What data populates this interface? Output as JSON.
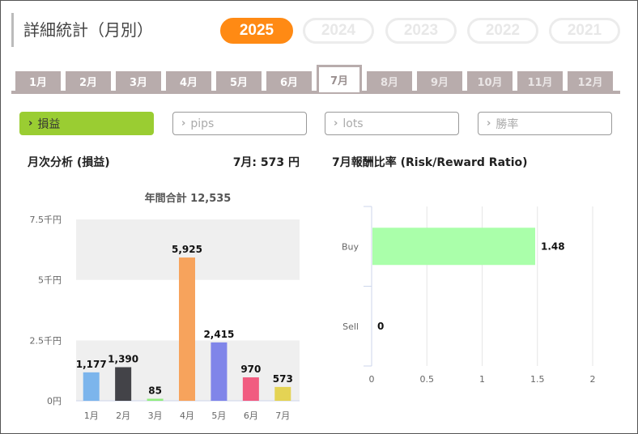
{
  "page": {
    "title": "詳細統計（月別）"
  },
  "years": [
    {
      "label": "2025",
      "active": true
    },
    {
      "label": "2024",
      "active": false
    },
    {
      "label": "2023",
      "active": false
    },
    {
      "label": "2022",
      "active": false
    },
    {
      "label": "2021",
      "active": false
    }
  ],
  "months": [
    {
      "label": "1月",
      "state": "normal"
    },
    {
      "label": "2月",
      "state": "normal"
    },
    {
      "label": "3月",
      "state": "normal"
    },
    {
      "label": "4月",
      "state": "normal"
    },
    {
      "label": "5月",
      "state": "normal"
    },
    {
      "label": "6月",
      "state": "normal"
    },
    {
      "label": "7月",
      "state": "active"
    },
    {
      "label": "8月",
      "state": "disabled"
    },
    {
      "label": "9月",
      "state": "disabled"
    },
    {
      "label": "10月",
      "state": "disabled"
    },
    {
      "label": "11月",
      "state": "disabled"
    },
    {
      "label": "12月",
      "state": "disabled"
    }
  ],
  "metrics": [
    {
      "label": "損益",
      "active": true
    },
    {
      "label": "pips",
      "active": false
    },
    {
      "label": "lots",
      "active": false
    },
    {
      "label": "勝率",
      "active": false
    }
  ],
  "left_panel": {
    "heading": "月次分析 (損益)",
    "current_value": "7月:  573 円",
    "annual_total": "年間合計 12,535"
  },
  "right_panel": {
    "heading": "7月報酬比率 (Risk/Reward Ratio)"
  },
  "colors": {
    "accent_orange": "#ff8a14",
    "active_green": "#9acd32",
    "tab_gray": "#b8acac"
  },
  "chart_data": [
    {
      "type": "bar",
      "categories": [
        "1月",
        "2月",
        "3月",
        "4月",
        "5月",
        "6月",
        "7月"
      ],
      "values": [
        1177,
        1390,
        85,
        5925,
        2415,
        970,
        573
      ],
      "value_labels": [
        "1,177",
        "1,390",
        "85",
        "5,925",
        "2,415",
        "970",
        "573"
      ],
      "colors": [
        "#7cb5ec",
        "#434348",
        "#90ed7d",
        "#f7a35c",
        "#8085e9",
        "#f15c80",
        "#e4d354"
      ],
      "yticks": [
        0,
        2500,
        5000,
        7500
      ],
      "ytick_labels": [
        "0円",
        "2.5千円",
        "5千円",
        "7.5千円"
      ],
      "ylim": [
        0,
        7500
      ],
      "title": "年間合計 12,535",
      "grid": false
    },
    {
      "type": "bar",
      "orientation": "horizontal",
      "categories": [
        "Buy",
        "Sell"
      ],
      "values": [
        1.48,
        0
      ],
      "value_labels": [
        "1.48",
        "0"
      ],
      "colors": [
        "#aaffaa",
        "#aaffaa"
      ],
      "xticks": [
        0,
        0.5,
        1,
        1.5,
        2
      ],
      "xtick_labels": [
        "0",
        "0.5",
        "1",
        "1.5",
        "2"
      ],
      "xlim": [
        0,
        2
      ],
      "grid": true
    }
  ]
}
